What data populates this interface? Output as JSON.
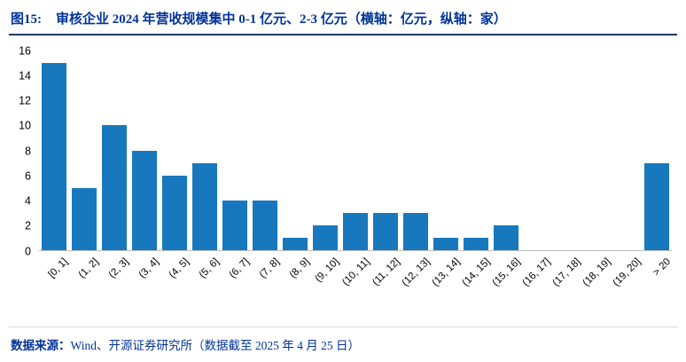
{
  "header": {
    "figure_label": "图15:",
    "title": "审核企业 2024 年营收规模集中 0-1 亿元、2-3 亿元（横轴：亿元，纵轴：家）"
  },
  "footer": {
    "label": "数据来源：",
    "text": "Wind、开源证券研究所（数据截至 2025 年 4 月 25 日）"
  },
  "colors": {
    "title_text": "#003399",
    "bar_fill": "#1778BE",
    "axis_text": "#000000",
    "axis_line": "#BFBFBF"
  },
  "chart_data": {
    "type": "bar",
    "title": "审核企业 2024 年营收规模集中 0-1 亿元、2-3 亿元",
    "xlabel": "亿元",
    "ylabel": "家",
    "categories": [
      "[0, 1]",
      "(1, 2]",
      "(2, 3]",
      "(3, 4]",
      "(4, 5]",
      "(5, 6]",
      "(6, 7]",
      "(7, 8]",
      "(8, 9]",
      "(9, 10]",
      "(10, 11]",
      "(11, 12]",
      "(12, 13]",
      "(13, 14]",
      "(14, 15]",
      "(15, 16]",
      "(16, 17]",
      "(17, 18]",
      "(18, 19]",
      "(19, 20]",
      "> 20"
    ],
    "values": [
      15,
      5,
      10,
      8,
      6,
      7,
      4,
      4,
      1,
      2,
      3,
      3,
      3,
      1,
      1,
      2,
      0,
      0,
      0,
      0,
      7
    ],
    "ylim": [
      0,
      16
    ],
    "yticks": [
      0,
      2,
      4,
      6,
      8,
      10,
      12,
      14,
      16
    ],
    "grid": false,
    "legend_position": "none"
  }
}
